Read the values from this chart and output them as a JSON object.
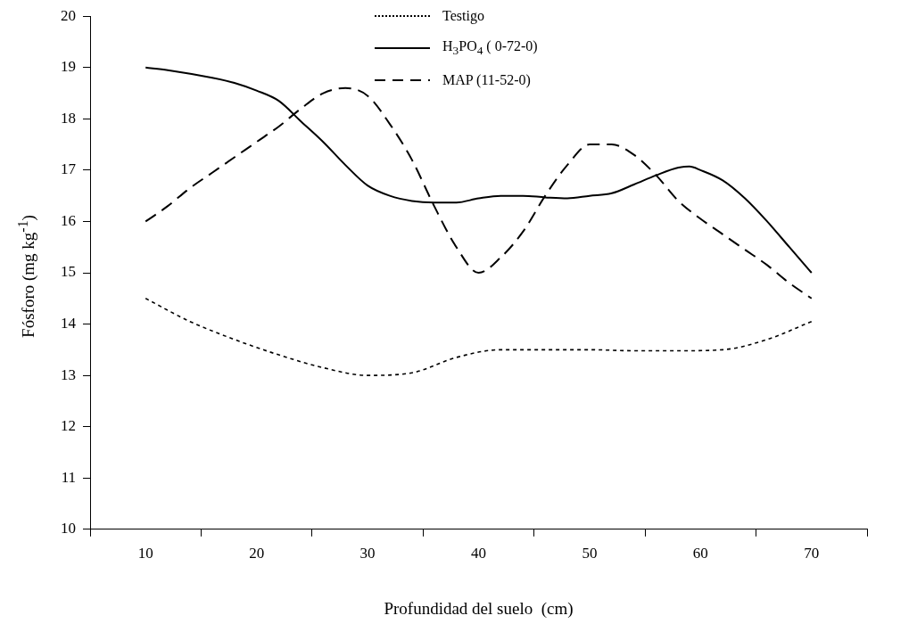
{
  "chart_data": {
    "type": "line",
    "xlabel": "Profundidad del suelo  (cm)",
    "ylabel": "Fósforo (mg kg$^{-1}$)",
    "xlim": [
      5,
      75
    ],
    "xticks": [
      {
        "value": 5,
        "label": null
      },
      10,
      {
        "value": 15,
        "label": null
      },
      20,
      {
        "value": 25,
        "label": null
      },
      30,
      {
        "value": 35,
        "label": null
      },
      40,
      {
        "value": 45,
        "label": null
      },
      50,
      {
        "value": 55,
        "label": null
      },
      60,
      {
        "value": 65,
        "label": null
      },
      70,
      {
        "value": 75,
        "label": null
      }
    ],
    "ylim": [
      10,
      20
    ],
    "yticks": [
      10,
      11,
      12,
      13,
      14,
      15,
      16,
      17,
      18,
      19,
      20
    ],
    "grid": false,
    "legend": "top",
    "marker": "none",
    "series": [
      {
        "name": "Testigo",
        "color": "#000000",
        "line_style": "dotted",
        "x": [
          10,
          14,
          18,
          22,
          26,
          30,
          34,
          38,
          42,
          46,
          50,
          54,
          58,
          62,
          66,
          70
        ],
        "values": [
          14.5,
          14.05,
          13.7,
          13.4,
          13.15,
          13.0,
          13.05,
          13.35,
          13.5,
          13.5,
          13.5,
          13.48,
          13.48,
          13.5,
          13.7,
          14.05
        ]
      },
      {
        "name": "H$_{3}$PO$_{4}$ ( 0-72-0)",
        "color": "#000000",
        "line_style": "solid",
        "x": [
          10,
          12,
          16,
          18,
          20,
          22,
          24,
          26,
          28,
          30,
          32,
          34,
          36,
          38,
          40,
          42,
          44,
          46,
          48,
          50,
          52,
          54,
          56,
          58,
          59,
          60,
          62,
          64,
          66,
          68,
          70
        ],
        "values": [
          19.0,
          18.95,
          18.8,
          18.7,
          18.55,
          18.35,
          17.95,
          17.55,
          17.1,
          16.7,
          16.5,
          16.4,
          16.37,
          16.37,
          16.45,
          16.5,
          16.5,
          16.47,
          16.45,
          16.5,
          16.55,
          16.72,
          16.9,
          17.05,
          17.07,
          17.0,
          16.8,
          16.45,
          16.0,
          15.5,
          15.0
        ]
      },
      {
        "name": "MAP (11-52-0)",
        "color": "#000000",
        "line_style": "dashed",
        "x": [
          10,
          12,
          14,
          16,
          18,
          20,
          22,
          24,
          26,
          28,
          30,
          32,
          34,
          36,
          38,
          40,
          42,
          44,
          46,
          48,
          50,
          52,
          54,
          56,
          58,
          60,
          62,
          64,
          66,
          68,
          70
        ],
        "values": [
          16.0,
          16.3,
          16.65,
          16.95,
          17.25,
          17.55,
          17.85,
          18.2,
          18.5,
          18.6,
          18.45,
          17.9,
          17.2,
          16.3,
          15.5,
          15.0,
          15.3,
          15.8,
          16.5,
          17.1,
          17.5,
          17.5,
          17.3,
          16.9,
          16.4,
          16.05,
          15.75,
          15.45,
          15.15,
          14.8,
          14.5
        ]
      }
    ]
  }
}
